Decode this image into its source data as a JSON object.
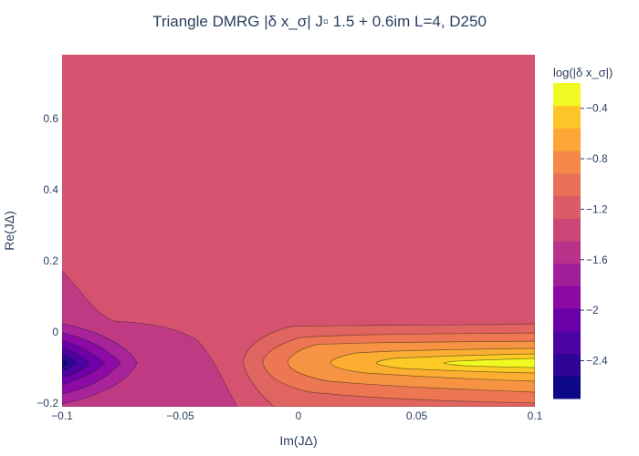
{
  "chart_data": {
    "type": "contour",
    "title": "Triangle DMRG |δ x_σ| J▫ 1.5 + 0.6im L=4, D250",
    "xlabel": "Im(JΔ)",
    "ylabel": "Re(JΔ)",
    "xlim": [
      -0.1,
      0.1
    ],
    "ylim": [
      -0.21,
      0.78
    ],
    "xticks": [
      -0.1,
      -0.05,
      0,
      0.05,
      0.1
    ],
    "xtick_labels": [
      "−0.1",
      "−0.05",
      "0",
      "0.05",
      "0.1"
    ],
    "yticks": [
      -0.2,
      0,
      0.2,
      0.4,
      0.6
    ],
    "ytick_labels": [
      "−0.2",
      "0",
      "0.2",
      "0.4",
      "0.6"
    ],
    "colorbar": {
      "title": "log(|δ x_σ|)",
      "range": [
        -2.7,
        -0.2
      ],
      "ticks": [
        -0.4,
        -0.8,
        -1.2,
        -1.6,
        -2,
        -2.4
      ],
      "tick_labels": [
        "−0.4",
        "−0.8",
        "−1.2",
        "−1.6",
        "−2",
        "−2.4"
      ],
      "colors": [
        "#0d0887",
        "#2f0596",
        "#4b03a1",
        "#6a00a8",
        "#8b0aa5",
        "#a21d9a",
        "#b93289",
        "#cc4778",
        "#db5c68",
        "#e87059",
        "#f48849",
        "#fca636",
        "#fdc527",
        "#f0f921"
      ]
    },
    "background_level": -1.3,
    "features": [
      {
        "description": "minimum well at left edge",
        "x": -0.1,
        "y": -0.09,
        "min_level": -2.6
      },
      {
        "description": "maximum ridge at right edge",
        "x": 0.1,
        "y": -0.09,
        "max_level": -0.25
      }
    ]
  }
}
